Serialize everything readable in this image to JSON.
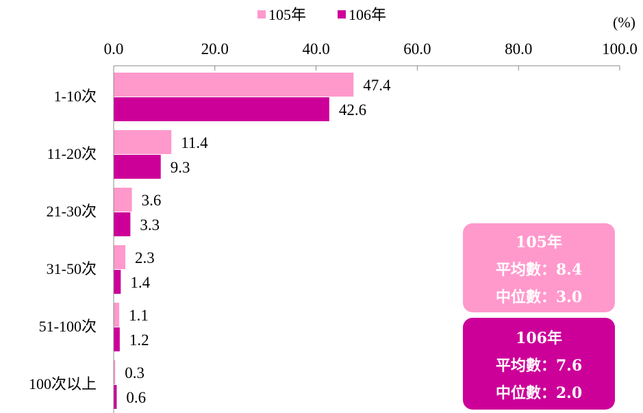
{
  "chart_data": {
    "type": "bar",
    "orientation": "horizontal",
    "unit_label": "(%)",
    "categories": [
      "1-10次",
      "11-20次",
      "21-30次",
      "31-50次",
      "51-100次",
      "100次以上"
    ],
    "series": [
      {
        "name": "105年",
        "color": "#ff99cc",
        "values": [
          47.4,
          11.4,
          3.6,
          2.3,
          1.1,
          0.3
        ]
      },
      {
        "name": "106年",
        "color": "#cc0099",
        "values": [
          42.6,
          9.3,
          3.3,
          1.4,
          1.2,
          0.6
        ]
      }
    ],
    "xlim": [
      0,
      100
    ],
    "ticks": [
      "0.0",
      "20.0",
      "40.0",
      "60.0",
      "80.0",
      "100.0"
    ],
    "legend_position": "top",
    "grid": false
  },
  "stats": [
    {
      "year": "105年",
      "mean": "平均數：8.4",
      "median": "中位數：3.0",
      "color": "#ff99cc"
    },
    {
      "year": "106年",
      "mean": "平均數：7.6",
      "median": "中位數：2.0",
      "color": "#cc0099"
    }
  ]
}
